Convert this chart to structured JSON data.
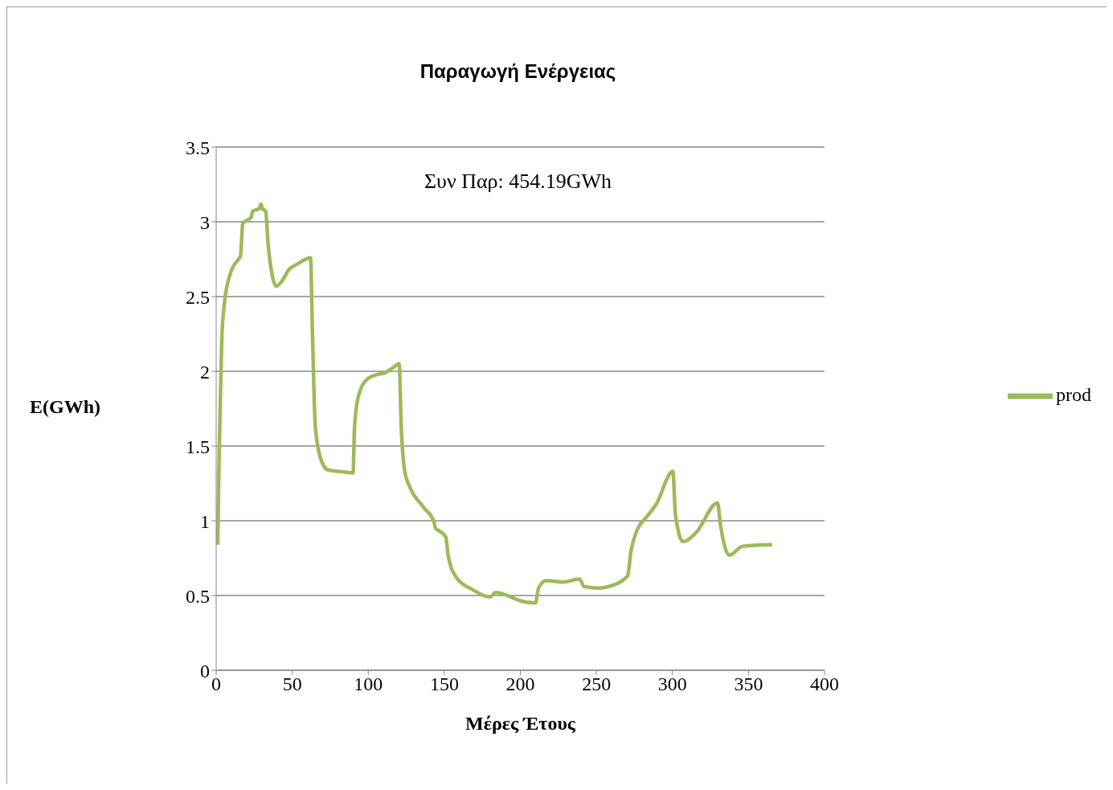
{
  "chart_data": {
    "type": "line",
    "title": "Παραγωγή Ενέργειας",
    "xlabel": "Μέρες Έτους",
    "ylabel": "E(GWh)",
    "annotations": [
      "Συν Παρ: 454.19GWh"
    ],
    "xlim": [
      0,
      400
    ],
    "xticks": [
      0,
      50,
      100,
      150,
      200,
      250,
      300,
      350,
      400
    ],
    "ylim": [
      0,
      3.5
    ],
    "yticks": [
      0,
      0.5,
      1,
      1.5,
      2,
      2.5,
      3,
      3.5
    ],
    "grid": "y",
    "legend": "right",
    "marker": "none",
    "line_style": "solid",
    "series": [
      {
        "name": "prod",
        "color": "#9bbb59",
        "x": [
          1,
          2,
          3.7,
          5.5,
          9.2,
          14.7,
          16,
          17.5,
          23,
          24,
          28.5,
          29.4,
          30.3,
          32.6,
          34,
          36.7,
          39.5,
          43,
          47.8,
          53.7,
          62,
          63.4,
          65.2,
          68.9,
          73.5,
          81.3,
          90,
          91,
          93.7,
          99.7,
          106.5,
          111,
          115.7,
          120.3,
          121.7,
          124,
          127.2,
          136.4,
          143.3,
          144.2,
          147,
          151,
          152.5,
          158,
          168.5,
          180,
          183.7,
          193.8,
          198.4,
          209.9,
          212,
          216.8,
          228.2,
          238.8,
          242,
          251.2,
          258,
          270.5,
          272.8,
          276.5,
          283.4,
          289.3,
          300.3,
          302,
          307,
          315.5,
          329.7,
          331.5,
          335.3,
          337.5,
          346.3,
          365.6
        ],
        "values": [
          0.84,
          1.47,
          2.22,
          2.46,
          2.65,
          2.75,
          2.77,
          2.99,
          3.03,
          3.07,
          3.09,
          3.12,
          3.09,
          3.07,
          2.87,
          2.65,
          2.57,
          2.6,
          2.68,
          2.72,
          2.76,
          2.22,
          1.63,
          1.41,
          1.34,
          1.33,
          1.32,
          1.63,
          1.84,
          1.95,
          1.98,
          1.99,
          2.02,
          2.05,
          1.63,
          1.33,
          1.23,
          1.09,
          0.99,
          0.95,
          0.93,
          0.89,
          0.77,
          0.62,
          0.54,
          0.49,
          0.52,
          0.49,
          0.47,
          0.45,
          0.55,
          0.6,
          0.59,
          0.61,
          0.56,
          0.55,
          0.56,
          0.63,
          0.8,
          0.93,
          1.03,
          1.11,
          1.33,
          1.04,
          0.86,
          0.92,
          1.12,
          0.98,
          0.8,
          0.77,
          0.83,
          0.84
        ]
      }
    ]
  }
}
